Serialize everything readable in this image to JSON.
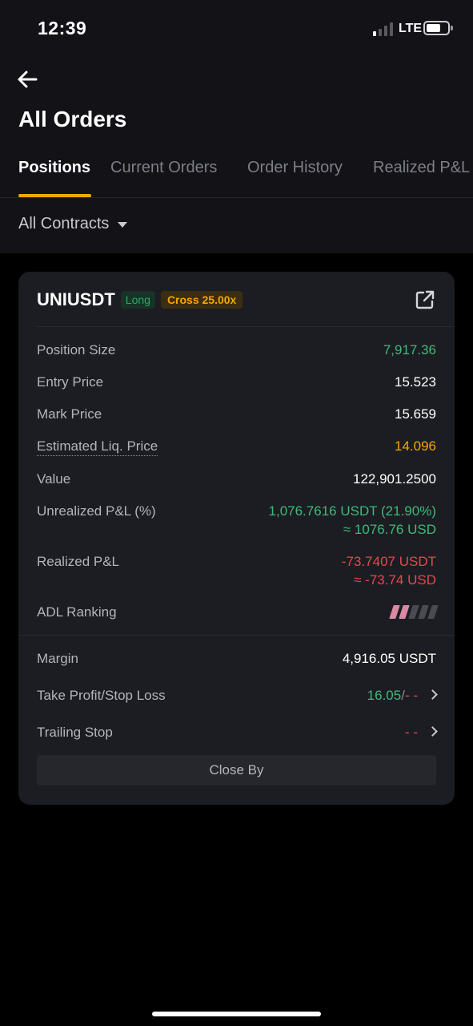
{
  "status_bar": {
    "time": "12:39",
    "network": "LTE",
    "signal_bars_on": 1,
    "signal_bars_total": 4
  },
  "header": {
    "title": "All Orders"
  },
  "tabs": [
    {
      "label": "Positions",
      "active": true
    },
    {
      "label": "Current Orders",
      "active": false
    },
    {
      "label": "Order History",
      "active": false
    },
    {
      "label": "Realized P&L",
      "active": false
    }
  ],
  "filter": {
    "label": "All Contracts"
  },
  "position": {
    "symbol": "UNIUSDT",
    "side": "Long",
    "margin_mode": "Cross 25.00x",
    "position_size": {
      "label": "Position Size",
      "value": "7,917.36"
    },
    "entry_price": {
      "label": "Entry Price",
      "value": "15.523"
    },
    "mark_price": {
      "label": "Mark Price",
      "value": "15.659"
    },
    "liq_price": {
      "label": "Estimated Liq. Price",
      "value": "14.096"
    },
    "value": {
      "label": "Value",
      "value": "122,901.2500"
    },
    "unrealized_pnl": {
      "label": "Unrealized P&L (%)",
      "value": "1,076.7616 USDT (21.90%)",
      "sub": "≈ 1076.76 USD"
    },
    "realized_pnl": {
      "label": "Realized P&L",
      "value": "-73.7407 USDT",
      "sub": "≈ -73.74 USD"
    },
    "adl_ranking": {
      "label": "ADL Ranking",
      "level": 2,
      "max": 5
    },
    "margin": {
      "label": "Margin",
      "value": "4,916.05 USDT"
    },
    "tp_sl": {
      "label": "Take Profit/Stop Loss",
      "tp": "16.05",
      "sep": "/",
      "sl": "- -"
    },
    "trailing_stop": {
      "label": "Trailing Stop",
      "value": "- -"
    },
    "close_by_label": "Close By"
  },
  "colors": {
    "accent": "#f7a600",
    "profit": "#3fb97a",
    "loss": "#e6484f",
    "card_bg": "#1c1d22",
    "header_bg": "#121217"
  },
  "icons": {
    "back": "arrow-left-icon",
    "share": "external-link-icon",
    "filter_caret": "caret-down-icon",
    "row_chevron": "chevron-right-icon"
  }
}
